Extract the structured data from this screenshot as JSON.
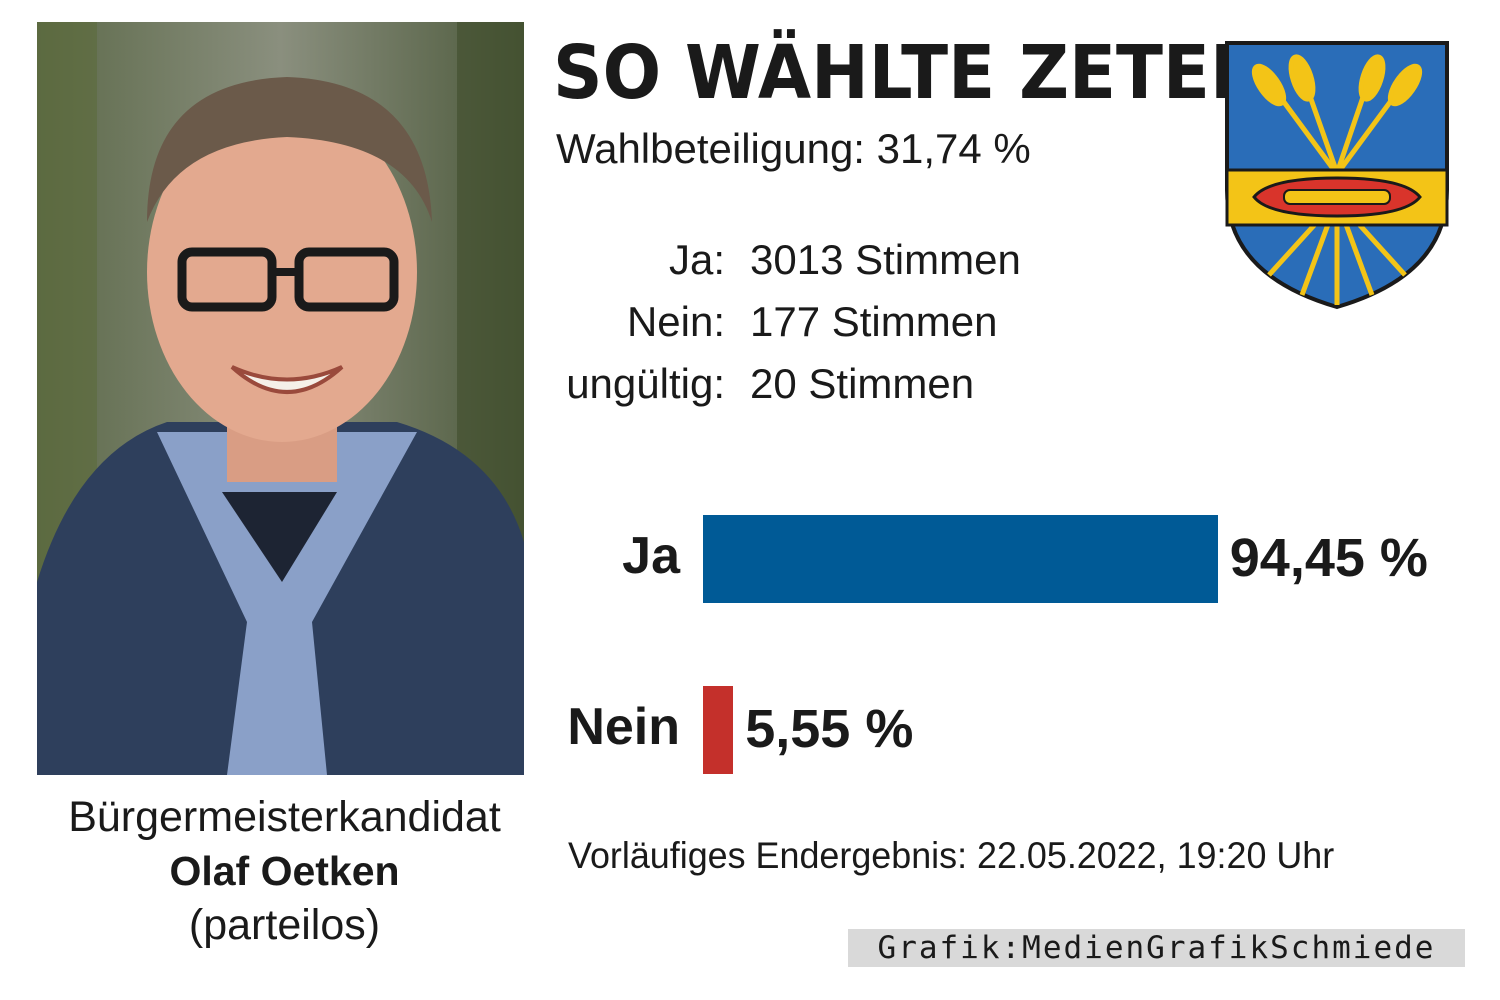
{
  "title": "SO WÄHLTE ZETEL",
  "turnout": "Wahlbeteiligung: 31,74 %",
  "votes": [
    {
      "label": "Ja:",
      "value": "3013 Stimmen"
    },
    {
      "label": "Nein:",
      "value": "177 Stimmen"
    },
    {
      "label": "ungültig:",
      "value": "20 Stimmen"
    }
  ],
  "candidate": {
    "role": "Bürgermeisterkandidat",
    "name": "Olaf Oetken",
    "party": "(parteilos)"
  },
  "footnote": "Vorläufiges Endergebnis: 22.05.2022, 19:20 Uhr",
  "credit": "Grafik:MedienGrafikSchmiede",
  "colors": {
    "ja": "#005a96",
    "nein": "#c4302b",
    "crest_blue": "#2a6db8",
    "crest_gold": "#f3c417",
    "crest_red": "#d9342b"
  },
  "icons": [
    "candidate-photo",
    "coat-of-arms-icon"
  ],
  "chart_data": {
    "type": "bar",
    "orientation": "horizontal",
    "categories": [
      "Ja",
      "Nein"
    ],
    "values": [
      94.45,
      5.55
    ],
    "value_labels": [
      "94,45 %",
      "5,55 %"
    ],
    "unit": "%",
    "xlim": [
      0,
      100
    ]
  }
}
